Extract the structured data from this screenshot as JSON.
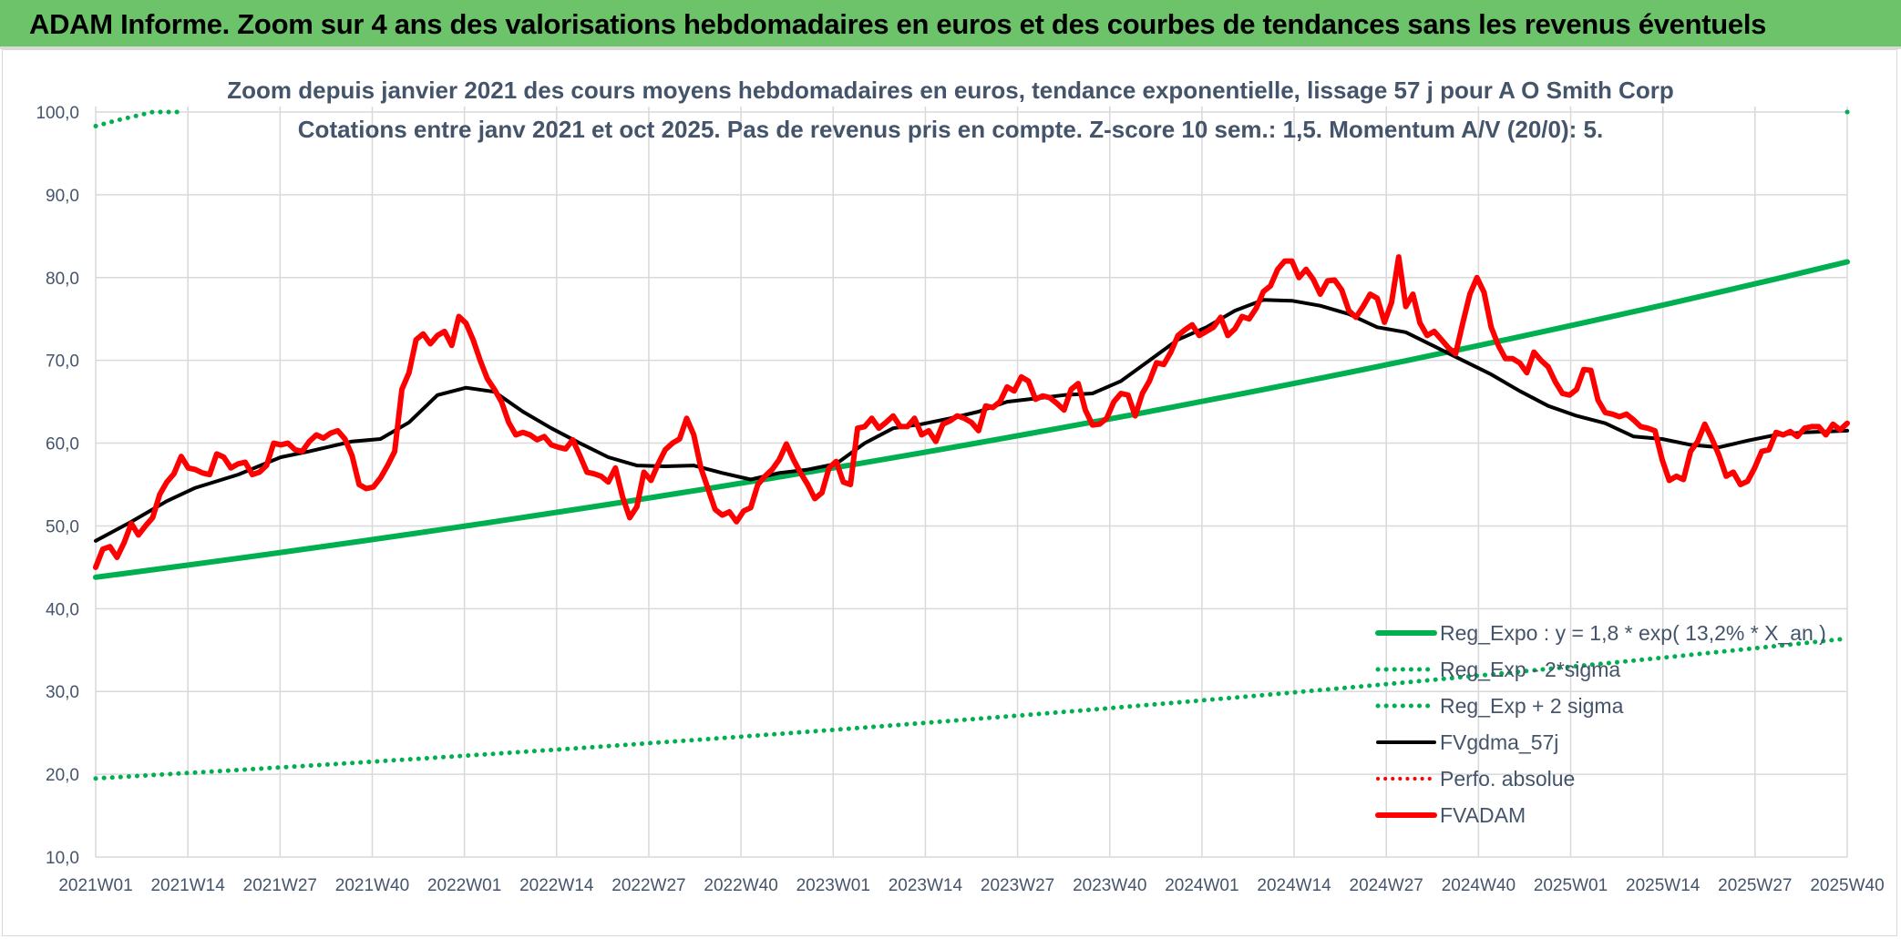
{
  "header": {
    "title": "ADAM Informe. Zoom sur 4 ans des valorisations hebdomadaires en euros et des courbes de tendances sans les revenus éventuels"
  },
  "colors": {
    "banner": "#6cc36a",
    "reg_expo": "#00b050",
    "sigma": "#00b050",
    "fvgdma": "#000000",
    "perfo": "#ff0000",
    "fvadam": "#ff0000",
    "grid": "#d9d9d9",
    "text": "#44546a"
  },
  "chart_data": {
    "type": "line",
    "title": [
      "Zoom depuis janvier 2021 des cours moyens hebdomadaires en euros, tendance exponentielle, lissage 57 j pour A O Smith Corp",
      "Cotations entre janv 2021 et oct 2025. Pas de revenus pris en compte. Z-score 10 sem.: 1,5. Momentum A/V (20/0): 5."
    ],
    "x_tick_labels": [
      "2021W01",
      "2021W14",
      "2021W27",
      "2021W40",
      "2022W01",
      "2022W14",
      "2022W27",
      "2022W40",
      "2023W01",
      "2023W14",
      "2023W27",
      "2023W40",
      "2024W01",
      "2024W14",
      "2024W27",
      "2024W40",
      "2025W01",
      "2025W14",
      "2025W27",
      "2025W40"
    ],
    "y_tick_labels": [
      "10,0",
      "20,0",
      "30,0",
      "40,0",
      "50,0",
      "60,0",
      "70,0",
      "80,0",
      "90,0",
      "100,0"
    ],
    "ylim": [
      10,
      100
    ],
    "grid": true,
    "legend_position": "bottom-right",
    "series": [
      {
        "name": "Reg_Expo : y = 1,8 * exp( 13,2% * X_an )",
        "style": "solid-thick",
        "x": [
          0,
          246
        ],
        "y": [
          43.8,
          81.9
        ],
        "kind": "exponential"
      },
      {
        "name": "Reg_Exp - 2*sigma",
        "style": "dotted",
        "x": [
          0,
          246
        ],
        "y": [
          19.5,
          36.4
        ],
        "kind": "exponential"
      },
      {
        "name": "Reg_Exp + 2 sigma",
        "style": "dotted",
        "x": [
          0,
          3,
          8,
          12,
          246
        ],
        "y": [
          98.3,
          99.0,
          100.0,
          100.0,
          100.0
        ],
        "note": "visible only near 100"
      },
      {
        "name": "FVgdma_57j",
        "style": "solid",
        "x": [
          0,
          5,
          10,
          14,
          20,
          26,
          30,
          36,
          40,
          44,
          48,
          52,
          56,
          60,
          64,
          68,
          72,
          76,
          80,
          84,
          88,
          92,
          96,
          100,
          104,
          108,
          112,
          116,
          120,
          124,
          128,
          132,
          136,
          140,
          144,
          148,
          152,
          156,
          160,
          164,
          168,
          172,
          176,
          180,
          184,
          188,
          192,
          196,
          200,
          204,
          208,
          212,
          216,
          220,
          224,
          228,
          232,
          236,
          240,
          246
        ],
        "y": [
          48.2,
          50.5,
          53.0,
          54.6,
          56.2,
          58.3,
          59.0,
          60.2,
          60.5,
          62.5,
          65.8,
          66.7,
          66.2,
          63.8,
          61.8,
          60.0,
          58.3,
          57.3,
          57.2,
          57.3,
          56.4,
          55.6,
          56.4,
          56.8,
          57.5,
          60.0,
          61.8,
          62.3,
          63.0,
          63.8,
          65.0,
          65.4,
          65.8,
          66.0,
          67.5,
          70.0,
          72.5,
          74.0,
          76.0,
          77.3,
          77.2,
          76.6,
          75.6,
          74.0,
          73.4,
          71.7,
          70.0,
          68.3,
          66.3,
          64.5,
          63.3,
          62.4,
          60.8,
          60.5,
          59.8,
          59.5,
          60.3,
          61.0,
          61.3,
          61.5
        ]
      },
      {
        "name": "Perfo. absolue",
        "style": "dotted",
        "x": [],
        "y": []
      },
      {
        "name": "FVADAM",
        "style": "solid-thick",
        "x": [
          0,
          1,
          2,
          3,
          4,
          5,
          6,
          7,
          8,
          9,
          10,
          11,
          12,
          13,
          14,
          15,
          16,
          17,
          18,
          19,
          20,
          21,
          22,
          23,
          24,
          25,
          26,
          27,
          28,
          29,
          30,
          31,
          32,
          33,
          34,
          35,
          36,
          37,
          38,
          39,
          40,
          41,
          42,
          43,
          44,
          45,
          46,
          47,
          48,
          49,
          50,
          51,
          52,
          53,
          54,
          55,
          56,
          57,
          58,
          59,
          60,
          61,
          62,
          63,
          64,
          65,
          66,
          67,
          68,
          69,
          70,
          71,
          72,
          73,
          74,
          75,
          76,
          77,
          78,
          79,
          80,
          81,
          82,
          83,
          84,
          85,
          86,
          87,
          88,
          89,
          90,
          91,
          92,
          93,
          94,
          95,
          96,
          97,
          98,
          99,
          100,
          101,
          102,
          103,
          104,
          105,
          106,
          107,
          108,
          109,
          110,
          111,
          112,
          113,
          114,
          115,
          116,
          117,
          118,
          119,
          120,
          121,
          122,
          123,
          124,
          125,
          126,
          127,
          128,
          129,
          130,
          131,
          132,
          133,
          134,
          135,
          136,
          137,
          138,
          139,
          140,
          141,
          142,
          143,
          144,
          145,
          146,
          147,
          148,
          149,
          150,
          151,
          152,
          153,
          154,
          155,
          156,
          157,
          158,
          159,
          160,
          161,
          162,
          163,
          164,
          165,
          166,
          167,
          168,
          169,
          170,
          171,
          172,
          173,
          174,
          175,
          176,
          177,
          178,
          179,
          180,
          181,
          182,
          183,
          184,
          185,
          186,
          187,
          188,
          189,
          190,
          191,
          192,
          193,
          194,
          195,
          196,
          197,
          198,
          199,
          200,
          201,
          202,
          203,
          204,
          205,
          206,
          207,
          208,
          209,
          210,
          211,
          212,
          213,
          214,
          215,
          216,
          217,
          218,
          219,
          220,
          221,
          222,
          223,
          224,
          225,
          226,
          227,
          228,
          229,
          230,
          231,
          232,
          233,
          234,
          235,
          236,
          237,
          238,
          239,
          240,
          241,
          242,
          243,
          244,
          245,
          246
        ],
        "y": [
          45.0,
          47.2,
          47.5,
          46.2,
          48.0,
          50.3,
          48.9,
          50.0,
          51.0,
          53.8,
          55.3,
          56.3,
          58.4,
          57.0,
          56.8,
          56.4,
          56.2,
          58.7,
          58.3,
          57.0,
          57.5,
          57.7,
          56.2,
          56.5,
          57.3,
          60.0,
          59.8,
          60.0,
          59.2,
          59.0,
          60.2,
          61.0,
          60.6,
          61.2,
          61.5,
          60.5,
          58.5,
          55.0,
          54.5,
          54.7,
          55.8,
          57.3,
          59.0,
          66.5,
          68.5,
          72.5,
          73.2,
          72.0,
          73.0,
          73.5,
          71.8,
          75.3,
          74.5,
          72.5,
          70.0,
          67.8,
          66.5,
          65.0,
          62.5,
          61.0,
          61.3,
          61.0,
          60.4,
          60.8,
          59.8,
          59.5,
          59.3,
          60.4,
          58.5,
          56.5,
          56.3,
          56.0,
          55.3,
          57.0,
          53.5,
          51.0,
          52.3,
          56.5,
          55.5,
          57.5,
          59.2,
          60.0,
          60.5,
          63.0,
          61.0,
          57.0,
          54.5,
          52.0,
          51.3,
          51.7,
          50.5,
          51.8,
          52.2,
          55.0,
          56.0,
          56.8,
          58.0,
          59.9,
          58.0,
          56.4,
          55.0,
          53.3,
          54.0,
          57.0,
          57.8,
          55.3,
          55.0,
          61.8,
          62.0,
          63.0,
          61.8,
          62.5,
          63.3,
          62.0,
          62.0,
          63.0,
          61.0,
          61.5,
          60.2,
          62.3,
          62.7,
          63.3,
          63.0,
          62.5,
          61.5,
          64.5,
          64.3,
          65.0,
          66.8,
          66.3,
          68.0,
          67.5,
          65.3,
          65.7,
          65.5,
          64.8,
          64.0,
          66.5,
          67.2,
          64.0,
          62.2,
          62.3,
          63.0,
          65.0,
          66.0,
          65.8,
          63.3,
          66.0,
          67.5,
          69.7,
          69.5,
          71.0,
          73.0,
          73.7,
          74.3,
          73.0,
          73.5,
          74.0,
          75.2,
          73.0,
          73.8,
          75.3,
          75.0,
          76.3,
          78.3,
          79.0,
          81.0,
          82.0,
          82.0,
          80.0,
          81.0,
          79.8,
          78.0,
          79.6,
          79.7,
          78.5,
          76.0,
          75.2,
          76.5,
          78.0,
          77.5,
          74.6,
          77.0,
          82.5,
          76.5,
          78.0,
          74.5,
          73.0,
          73.5,
          72.5,
          71.5,
          70.8,
          74.5,
          78.0,
          80.0,
          78.2,
          74.0,
          71.8,
          70.2,
          70.2,
          69.7,
          68.5,
          71.0,
          70.0,
          69.2,
          67.4,
          66.0,
          65.8,
          66.5,
          68.9,
          68.8,
          65.2,
          63.7,
          63.5,
          63.2,
          63.5,
          62.8,
          62.0,
          61.8,
          61.5,
          58.0,
          55.5,
          56.0,
          55.6,
          59.0,
          60.2,
          62.3,
          60.5,
          58.5,
          56.0,
          56.5,
          55.0,
          55.4,
          57.0,
          59.0,
          59.2,
          61.3,
          61.0,
          61.4,
          60.8,
          61.8,
          62.0,
          62.0,
          61.0,
          62.3,
          61.6,
          62.4
        ]
      }
    ]
  }
}
